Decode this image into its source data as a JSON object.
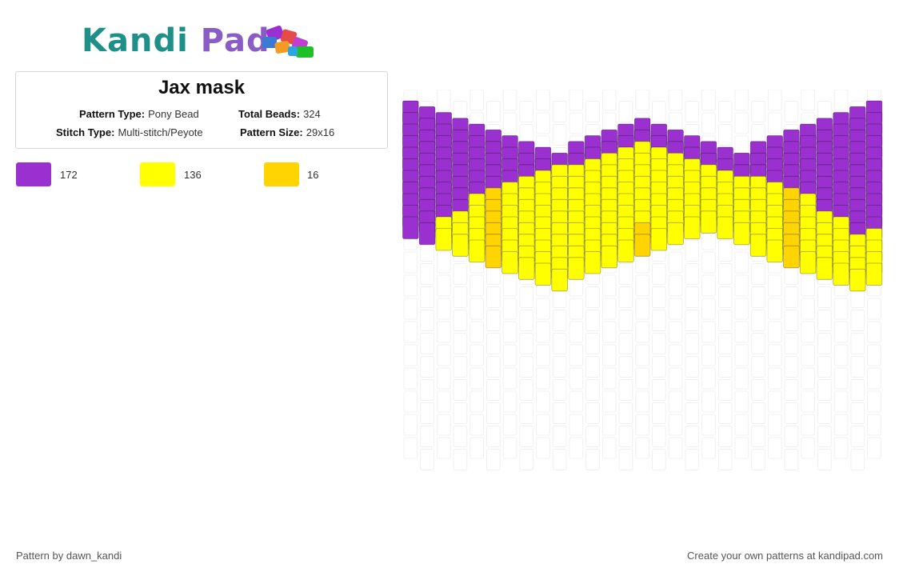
{
  "logo": {
    "part1": "Kandi",
    "part2": "Pad"
  },
  "pattern": {
    "title": "Jax mask",
    "type_label": "Pattern Type:",
    "type_value": "Pony Bead",
    "beads_label": "Total Beads:",
    "beads_value": "324",
    "stitch_label": "Stitch Type:",
    "stitch_value": "Multi-stitch/Peyote",
    "size_label": "Pattern Size:",
    "size_value": "29x16"
  },
  "colors": {
    "purple": "#9b30d0",
    "yellow": "#ffff00",
    "gold": "#ffd400"
  },
  "legend": [
    {
      "color": "#9b30d0",
      "count": "172"
    },
    {
      "color": "#ffff00",
      "count": "136"
    },
    {
      "color": "#ffd400",
      "count": "16"
    }
  ],
  "footer": {
    "left": "Pattern by dawn_kandi",
    "right": "Create your own patterns at kandipad.com"
  }
}
